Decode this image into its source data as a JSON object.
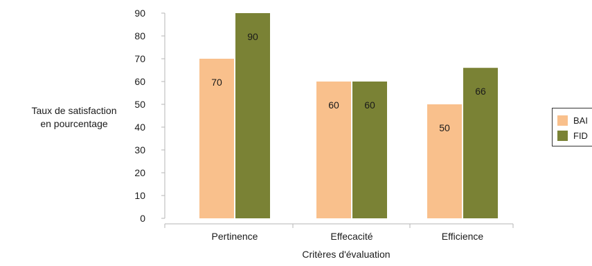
{
  "chart_data": {
    "type": "bar",
    "categories": [
      "Pertinence",
      "Effecacité",
      "Efficience"
    ],
    "series": [
      {
        "name": "BAI",
        "values": [
          70,
          60,
          50
        ],
        "color": "#f9c08c"
      },
      {
        "name": "FID",
        "values": [
          90,
          60,
          66
        ],
        "color": "#7a8235"
      }
    ],
    "ylabel": "Taux de satisfaction en pourcentage",
    "ylabel_lines": [
      "Taux de satisfaction",
      "en pourcentage"
    ],
    "xlabel": "Critères d'évaluation",
    "yticks": [
      0,
      10,
      20,
      30,
      40,
      50,
      60,
      70,
      80,
      90
    ],
    "ylim": [
      0,
      90
    ],
    "grid": false,
    "legend_position": "right"
  }
}
